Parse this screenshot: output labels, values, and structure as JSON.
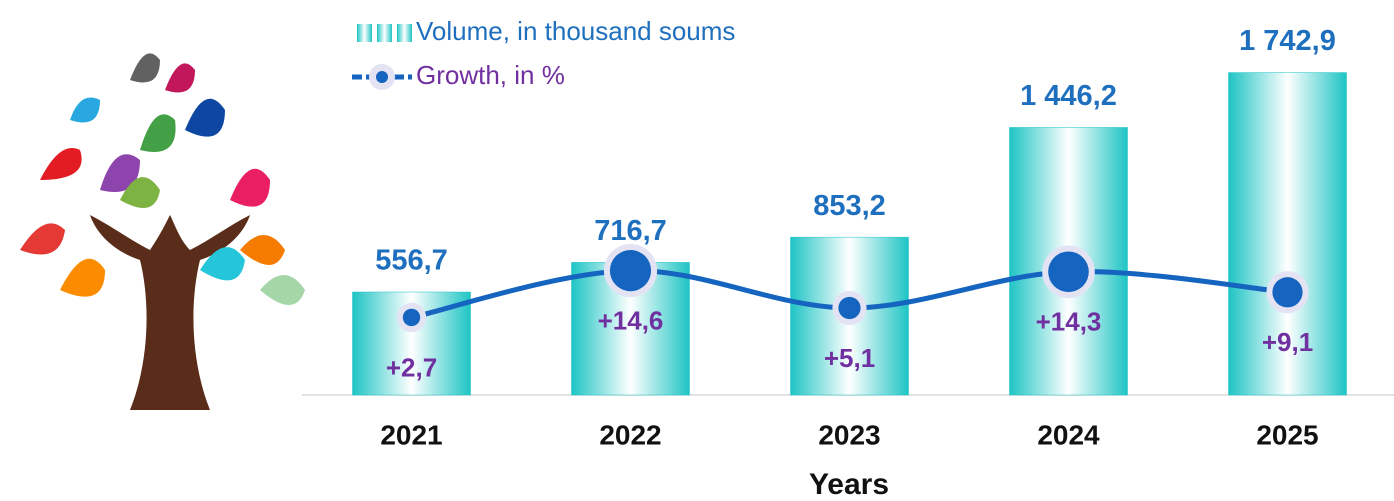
{
  "chart_data": {
    "type": "bar-line",
    "categories": [
      "2021",
      "2022",
      "2023",
      "2024",
      "2025"
    ],
    "x_label": "Years",
    "series": [
      {
        "name": "Volume, in thousand soums",
        "type": "bar",
        "color": "#1ec4c4",
        "values": [
          556.7,
          716.7,
          853.2,
          1446.2,
          1742.9
        ],
        "value_labels": [
          "556,7",
          "716,7",
          "853,2",
          "1 446,2",
          "1 742,9"
        ]
      },
      {
        "name": "Growth, in %",
        "type": "line",
        "axis": "y2",
        "color": "#1565c0",
        "values": [
          2.7,
          14.6,
          5.1,
          14.3,
          9.1
        ],
        "value_labels": [
          "+2,7",
          "+14,6",
          "+5,1",
          "+14,3",
          "+9,1"
        ]
      }
    ],
    "ylim": [
      0,
      2000
    ],
    "y2lim": [
      -17,
      77
    ],
    "grid": false
  }
}
